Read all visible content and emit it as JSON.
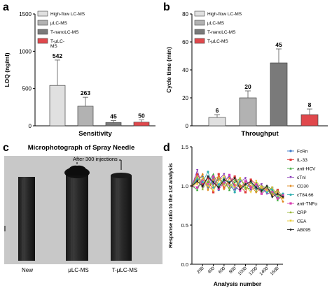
{
  "panels": {
    "a": "a",
    "b": "b",
    "c": "c",
    "d": "d"
  },
  "colors": {
    "highflow": "#e0e0e0",
    "ulc": "#b2b2b2",
    "tnano": "#7a7a7a",
    "tulc": "#e0484c"
  },
  "legend_ab": [
    "High-flow LC-MS",
    "μLC-MS",
    "T-nanoLC-MS",
    "T-μLC-MS"
  ],
  "photo": {
    "title": "Microphotograph of Spray Needle",
    "note": "After 300 injections",
    "needle_labels": [
      "New",
      "μLC-MS",
      "T-μLC-MS"
    ]
  },
  "chart_data": [
    {
      "type": "bar",
      "panel": "a",
      "categories": [
        "High-flow LC-MS",
        "μLC-MS",
        "T-nanoLC-MS",
        "T-μLC-MS"
      ],
      "values": [
        542,
        263,
        45,
        50
      ],
      "errors": [
        340,
        120,
        25,
        30
      ],
      "data_labels": [
        "542",
        "263",
        "45",
        "50"
      ],
      "xlabel": "Sensitivity",
      "ylabel": "LOQ (ng/ml)",
      "ylim": [
        0,
        1500
      ],
      "yticks": [
        0,
        500,
        1000,
        1500
      ],
      "legend": "top-left"
    },
    {
      "type": "bar",
      "panel": "b",
      "categories": [
        "High-flow LC-MS",
        "μLC-MS",
        "T-nanoLC-MS",
        "T-μLC-MS"
      ],
      "values": [
        6,
        20,
        45,
        8
      ],
      "errors": [
        2,
        5,
        10,
        4
      ],
      "data_labels": [
        "6",
        "20",
        "45",
        "8"
      ],
      "xlabel": "Throughput",
      "ylabel": "Cycle time (min)",
      "ylim": [
        0,
        80
      ],
      "yticks": [
        0,
        20,
        40,
        60,
        80
      ],
      "legend": "top-left"
    },
    {
      "type": "line",
      "panel": "d",
      "xlabel": "Analysis number",
      "ylabel": "Response ratio to the 1st analysis",
      "xlim": [
        0,
        1700
      ],
      "ylim": [
        0,
        1.5
      ],
      "xticks": [
        200,
        400,
        600,
        800,
        1000,
        1200,
        1400,
        1600
      ],
      "yticks": [
        0.0,
        0.5,
        1.0,
        1.5
      ],
      "ytick_labels": [
        "0.0",
        "0.5",
        "1.0",
        "1.5"
      ],
      "legend": "right",
      "series": [
        {
          "name": "FcRn",
          "color": "#3a78c8",
          "marker": "circle",
          "x": [
            1,
            100,
            200,
            300,
            400,
            500,
            600,
            700,
            800,
            900,
            1000,
            1100,
            1200,
            1300,
            1400,
            1500,
            1600,
            1700
          ],
          "y": [
            1.0,
            1.08,
            1.12,
            0.98,
            1.1,
            0.95,
            1.06,
            1.12,
            0.98,
            0.95,
            1.02,
            1.05,
            0.96,
            0.97,
            0.92,
            0.98,
            0.88,
            0.9
          ]
        },
        {
          "name": "IL-33",
          "color": "#e03a3a",
          "marker": "square",
          "x": [
            1,
            100,
            200,
            300,
            400,
            500,
            600,
            700,
            800,
            900,
            1000,
            1100,
            1200,
            1300,
            1400,
            1500,
            1600,
            1700
          ],
          "y": [
            1.0,
            1.15,
            1.02,
            1.1,
            0.92,
            1.15,
            0.98,
            1.05,
            1.12,
            1.0,
            0.92,
            1.08,
            1.02,
            0.95,
            0.98,
            0.9,
            0.95,
            0.85
          ]
        },
        {
          "name": "anti-HCV",
          "color": "#3aa83a",
          "marker": "triangle",
          "x": [
            1,
            100,
            200,
            300,
            400,
            500,
            600,
            700,
            800,
            900,
            1000,
            1100,
            1200,
            1300,
            1400,
            1500,
            1600,
            1700
          ],
          "y": [
            1.0,
            0.95,
            1.1,
            1.05,
            1.15,
            1.0,
            1.08,
            0.95,
            1.05,
            1.1,
            0.98,
            0.96,
            1.05,
            0.92,
            1.0,
            0.95,
            0.82,
            0.88
          ]
        },
        {
          "name": "cTnI",
          "color": "#8a3ab8",
          "marker": "triangle-down",
          "x": [
            1,
            100,
            200,
            300,
            400,
            500,
            600,
            700,
            800,
            900,
            1000,
            1100,
            1200,
            1300,
            1400,
            1500,
            1600,
            1700
          ],
          "y": [
            1.0,
            1.2,
            0.98,
            1.12,
            1.02,
            1.08,
            1.15,
            1.0,
            0.95,
            1.05,
            1.1,
            0.95,
            0.98,
            1.02,
            0.9,
            0.92,
            0.9,
            0.85
          ]
        },
        {
          "name": "CD30",
          "color": "#e08a20",
          "marker": "diamond",
          "x": [
            1,
            100,
            200,
            300,
            400,
            500,
            600,
            700,
            800,
            900,
            1000,
            1100,
            1200,
            1300,
            1400,
            1500,
            1600,
            1700
          ],
          "y": [
            1.0,
            1.05,
            1.15,
            0.95,
            1.08,
            1.12,
            0.96,
            1.1,
            1.02,
            0.98,
            1.05,
            1.0,
            0.92,
            0.98,
            0.95,
            0.88,
            0.92,
            0.8
          ]
        },
        {
          "name": "cT84.66",
          "color": "#30b0b0",
          "marker": "circle",
          "x": [
            1,
            100,
            200,
            300,
            400,
            500,
            600,
            700,
            800,
            900,
            1000,
            1100,
            1200,
            1300,
            1400,
            1500,
            1600,
            1700
          ],
          "y": [
            1.0,
            1.1,
            1.05,
            1.18,
            0.98,
            1.02,
            1.1,
            1.05,
            0.92,
            1.08,
            1.02,
            0.98,
            1.0,
            0.95,
            0.92,
            0.96,
            0.86,
            0.9
          ]
        },
        {
          "name": "anti-TNFα",
          "color": "#d83ab0",
          "marker": "square",
          "x": [
            1,
            100,
            200,
            300,
            400,
            500,
            600,
            700,
            800,
            900,
            1000,
            1100,
            1200,
            1300,
            1400,
            1500,
            1600,
            1700
          ],
          "y": [
            1.0,
            0.98,
            1.08,
            1.02,
            1.12,
            0.96,
            1.04,
            1.14,
            1.0,
            0.94,
            1.06,
            0.98,
            1.02,
            0.9,
            0.96,
            0.92,
            0.84,
            0.88
          ]
        },
        {
          "name": "CRP",
          "color": "#9ab83a",
          "marker": "triangle",
          "x": [
            1,
            100,
            200,
            300,
            400,
            500,
            600,
            700,
            800,
            900,
            1000,
            1100,
            1200,
            1300,
            1400,
            1500,
            1600,
            1700
          ],
          "y": [
            1.0,
            1.12,
            0.96,
            1.06,
            1.0,
            1.1,
            1.02,
            0.98,
            1.08,
            1.02,
            0.96,
            1.04,
            0.94,
            1.0,
            0.98,
            0.9,
            0.94,
            0.86
          ]
        },
        {
          "name": "CEA",
          "color": "#e8c830",
          "marker": "triangle-down",
          "x": [
            1,
            100,
            200,
            300,
            400,
            500,
            600,
            700,
            800,
            900,
            1000,
            1100,
            1200,
            1300,
            1400,
            1500,
            1600,
            1700
          ],
          "y": [
            1.0,
            1.02,
            1.1,
            1.0,
            0.94,
            1.06,
            1.12,
            1.02,
            0.98,
            1.1,
            1.0,
            0.92,
            1.06,
            0.98,
            0.94,
            0.98,
            0.88,
            0.84
          ]
        },
        {
          "name": "AB095",
          "color": "#222222",
          "marker": "diamond",
          "x": [
            1,
            100,
            200,
            300,
            400,
            500,
            600,
            700,
            800,
            900,
            1000,
            1100,
            1200,
            1300,
            1400,
            1500,
            1600,
            1700
          ],
          "y": [
            1.0,
            1.06,
            1.0,
            1.12,
            1.05,
            0.98,
            1.08,
            1.04,
            1.1,
            0.96,
            1.02,
            1.06,
            0.98,
            0.94,
            1.0,
            0.86,
            0.9,
            0.86
          ]
        }
      ]
    }
  ]
}
